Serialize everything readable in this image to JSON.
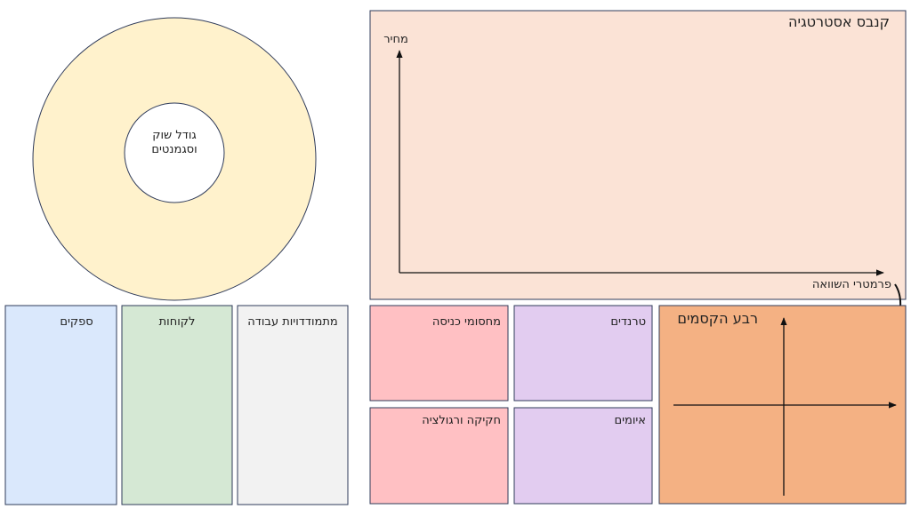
{
  "market": {
    "label_line1": "גודל שוק",
    "label_line2": "וסגמנטים"
  },
  "left_boxes": [
    "ספקים",
    "לקוחות",
    "מתמודדויות עבודה"
  ],
  "canvas": {
    "title": "קנבס אסטרטגיה",
    "y_axis": "מחיר",
    "x_axis": "פרמטרי השוואה"
  },
  "factor_boxes": [
    "מחסומי כניסה",
    "טרנדים",
    "חקיקה ורגולציה",
    "איומים"
  ],
  "quadrant": {
    "title": "רבע הקסמים"
  }
}
